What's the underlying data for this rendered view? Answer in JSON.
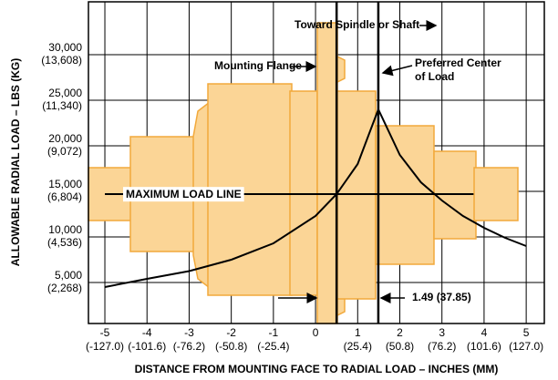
{
  "chart_data": {
    "type": "line",
    "xlabel": "DISTANCE FROM MOUNTING FACE TO RADIAL LOAD – INCHES (MM)",
    "ylabel": "ALLOWABLE RADIAL LOAD – LBS (KG)",
    "x": [
      -5,
      -4,
      -3,
      -2,
      -1,
      0,
      0.5,
      1,
      1.49,
      2,
      2.5,
      3,
      3.5,
      4,
      4.5,
      5
    ],
    "values": [
      4500,
      5400,
      6250,
      7500,
      9300,
      12300,
      14700,
      18000,
      24000,
      19000,
      16000,
      14000,
      12300,
      11000,
      9900,
      9000
    ],
    "color": "#000000",
    "xlim": [
      -5.39,
      5.43
    ],
    "ylim": [
      500,
      35800
    ],
    "xticks": [
      -5,
      -4,
      -3,
      -2,
      -1,
      0,
      1,
      2,
      3,
      4,
      5
    ],
    "xticks_mm": [
      "(-127.0)",
      "(-101.6)",
      "(-76.2)",
      "(-50.8)",
      "(-25.4)",
      null,
      "(25.4)",
      "(50.8)",
      "(76.2)",
      "(101.6)",
      "(127.0)"
    ],
    "yticks": [
      {
        "value": 5000,
        "label": "5,000"
      },
      {
        "value": 10000,
        "label": "10,000"
      },
      {
        "value": 15000,
        "label": "15,000"
      },
      {
        "value": 20000,
        "label": "20,000"
      },
      {
        "value": 25000,
        "label": "25,000"
      },
      {
        "value": 30000,
        "label": "30,000"
      }
    ],
    "yticks_kg": [
      "(2,268)",
      "(4,536)",
      "(6,804)",
      "(9,072)",
      "(11,340)",
      "(13,608)"
    ],
    "grid": true,
    "vlines": [
      0.5,
      1.49
    ],
    "max_load_line": {
      "label": "MAXIMUM LOAD LINE",
      "value": 14700,
      "x_end": 3.75
    },
    "annotations": {
      "spindle": "Toward Spindle or Shaft",
      "flange": "Mounting Flange",
      "center1": "Preferred Center",
      "center2": "of Load",
      "offset": "1.49 (37.85)"
    }
  }
}
